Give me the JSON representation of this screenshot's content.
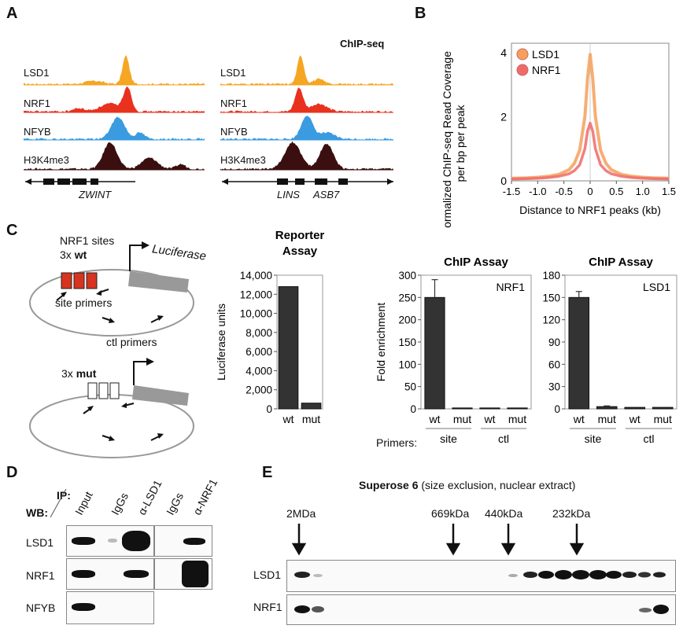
{
  "panels": {
    "A": "A",
    "B": "B",
    "C": "C",
    "D": "D",
    "E": "E"
  },
  "panelA": {
    "header": "ChIP-seq",
    "tracks": [
      "LSD1",
      "NRF1",
      "NFYB",
      "H3K4me3"
    ],
    "track_colors": {
      "LSD1": "#f5a623",
      "NRF1": "#e8321e",
      "NFYB": "#3a9be0",
      "H3K4me3": "#3b0f0f"
    },
    "genes_left": [
      "ZWINT"
    ],
    "genes_right": [
      "LINS",
      "ASB7"
    ]
  },
  "panelB": {
    "legend": [
      "LSD1",
      "NRF1"
    ]
  },
  "panelC": {
    "diagram": {
      "nrf1_sites": "NRF1 sites",
      "wt_prefix": "3x ",
      "wt": "wt",
      "mut_prefix": "3x ",
      "mut": "mut",
      "luciferase": "Luciferase",
      "site_primers": "site primers",
      "ctl_primers": "ctl primers"
    },
    "primers_label": "Primers:"
  },
  "panelD": {
    "ip_label": "IP",
    "wb_label": "WB",
    "lanes": [
      "Input",
      "IgGs",
      "α-LSD1",
      "IgGs",
      "α-NRF1"
    ],
    "rows": [
      "LSD1",
      "NRF1",
      "NFYB"
    ]
  },
  "panelE": {
    "title_bold": "Superose 6",
    "title_rest": " (size exclusion, nuclear extract)",
    "markers": [
      "2MDa",
      "669kDa",
      "440kDa",
      "232kDa"
    ],
    "rows": [
      "LSD1",
      "NRF1"
    ]
  },
  "chart_data": [
    {
      "type": "line",
      "id": "B",
      "x": [
        -1.5,
        -1.2,
        -1.0,
        -0.8,
        -0.6,
        -0.4,
        -0.3,
        -0.2,
        -0.1,
        -0.05,
        0,
        0.05,
        0.1,
        0.2,
        0.3,
        0.4,
        0.6,
        0.8,
        1.0,
        1.2,
        1.5
      ],
      "series": [
        {
          "name": "LSD1",
          "color": "#f5a05a",
          "values": [
            0.08,
            0.09,
            0.11,
            0.14,
            0.2,
            0.35,
            0.55,
            0.95,
            2.0,
            3.2,
            3.95,
            3.2,
            2.0,
            0.95,
            0.55,
            0.35,
            0.2,
            0.14,
            0.11,
            0.09,
            0.08
          ]
        },
        {
          "name": "NRF1",
          "color": "#f06a6a",
          "values": [
            0.06,
            0.07,
            0.08,
            0.1,
            0.14,
            0.22,
            0.32,
            0.5,
            1.0,
            1.55,
            1.8,
            1.55,
            1.0,
            0.5,
            0.32,
            0.22,
            0.14,
            0.1,
            0.08,
            0.07,
            0.06
          ]
        }
      ],
      "xlabel": "Distance to NRF1 peaks (kb)",
      "ylabel": "Normalized ChIP-seq Read Coverage per bp per peak",
      "xticks": [
        "-1.5",
        "-1.0",
        "-0.5",
        "0",
        "0.5",
        "1.0",
        "1.5"
      ],
      "yticks": [
        "0",
        "2",
        "4"
      ],
      "xlim": [
        -1.5,
        1.5
      ],
      "ylim": [
        0,
        4.3
      ]
    },
    {
      "type": "bar",
      "id": "C1",
      "title": "Reporter\nAssay",
      "categories": [
        "wt",
        "mut"
      ],
      "values": [
        12800,
        600
      ],
      "ylabel": "Luciferase units",
      "yticks": [
        "0",
        "2,000",
        "4,000",
        "6,000",
        "8,000",
        "10,000",
        "12,000",
        "14,000"
      ],
      "ylim": [
        0,
        14000
      ]
    },
    {
      "type": "bar",
      "id": "C2",
      "title": "ChIP Assay",
      "inset": "NRF1",
      "categories": [
        "wt",
        "mut",
        "wt",
        "mut"
      ],
      "groups": [
        "site",
        "ctl"
      ],
      "values": [
        250,
        2,
        2,
        2
      ],
      "errors": [
        40,
        0,
        0,
        0
      ],
      "ylabel": "Fold enrichment",
      "yticks": [
        "0",
        "50",
        "100",
        "150",
        "200",
        "250",
        "300"
      ],
      "ylim": [
        0,
        300
      ]
    },
    {
      "type": "bar",
      "id": "C3",
      "title": "ChIP Assay",
      "inset": "LSD1",
      "categories": [
        "wt",
        "mut",
        "wt",
        "mut"
      ],
      "groups": [
        "site",
        "ctl"
      ],
      "values": [
        150,
        3,
        2,
        2
      ],
      "errors": [
        8,
        1,
        0,
        0
      ],
      "yticks": [
        "0",
        "30",
        "60",
        "90",
        "120",
        "150",
        "180"
      ],
      "ylim": [
        0,
        180
      ]
    }
  ]
}
